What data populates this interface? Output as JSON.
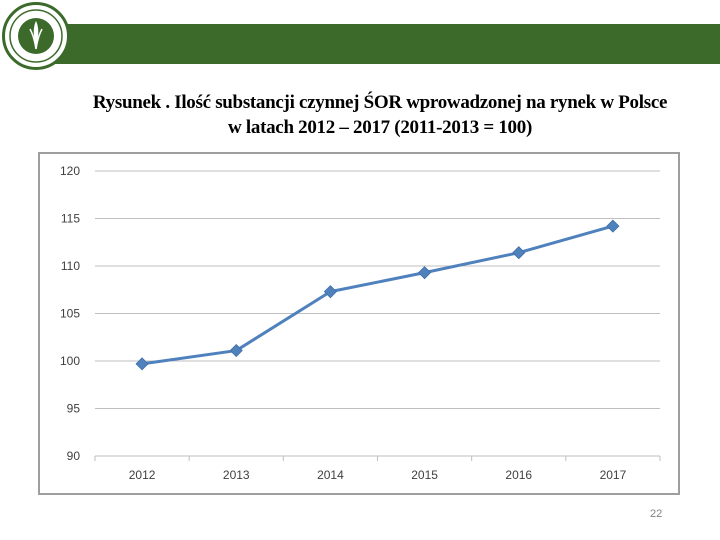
{
  "title_line1": "Rysunek . Ilość substancji czynnej ŚOR wprowadzonej na rynek w Polsce",
  "title_line2": "w latach 2012 – 2017 (2011-2013 = 100)",
  "page_number": "22",
  "colors": {
    "header_band": "#3b6a2a",
    "series": "#4f81bd",
    "grid": "#bfbfbf"
  },
  "chart_data": {
    "type": "line",
    "title": "Rysunek . Ilość substancji czynnej ŚOR wprowadzonej na rynek w Polsce w latach 2012 – 2017 (2011-2013 = 100)",
    "categories": [
      "2012",
      "2013",
      "2014",
      "2015",
      "2016",
      "2017"
    ],
    "series": [
      {
        "name": "Ilość substancji czynnej ŚOR (2011-2013 = 100)",
        "values": [
          99.7,
          101.1,
          107.3,
          109.3,
          111.4,
          114.2
        ]
      }
    ],
    "ylim": [
      90,
      120
    ],
    "yticks": [
      "90",
      "95",
      "100",
      "105",
      "110",
      "115",
      "120"
    ],
    "xlabel": "",
    "ylabel": "",
    "grid": true,
    "marker": "diamond"
  }
}
